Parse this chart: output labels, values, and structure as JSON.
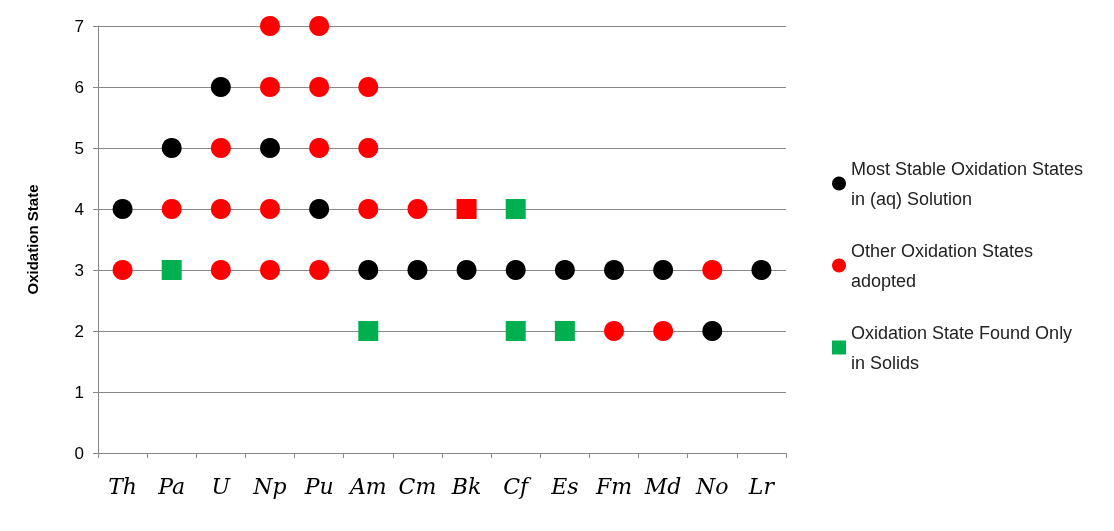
{
  "chart_data": {
    "type": "scatter",
    "ylabel": "Oxidation State",
    "categories": [
      "Th",
      "Pa",
      "U",
      "Np",
      "Pu",
      "Am",
      "Cm",
      "Bk",
      "Cf",
      "Es",
      "Fm",
      "Md",
      "No",
      "Lr"
    ],
    "ylim": [
      0,
      7
    ],
    "yticks": [
      0,
      1,
      2,
      3,
      4,
      5,
      6,
      7
    ],
    "grid": "y",
    "legend": "right",
    "series": [
      {
        "name": "Most Stable Oxidation States in (aq) Solution",
        "color": "#000000",
        "marker": "circle",
        "x": [
          "Th",
          "Pa",
          "U",
          "Np",
          "Pu",
          "Am",
          "Cm",
          "Bk",
          "Cf",
          "Es",
          "Fm",
          "Md",
          "No",
          "Lr"
        ],
        "values": [
          4,
          5,
          6,
          5,
          4,
          3,
          3,
          3,
          3,
          3,
          3,
          3,
          2,
          3
        ]
      },
      {
        "name": "Other Oxidation States adopted",
        "color": "#ff0000",
        "marker": "circle",
        "x": [
          "Th",
          "Pa",
          "U",
          "U",
          "U",
          "Np",
          "Np",
          "Np",
          "Np",
          "Pu",
          "Pu",
          "Pu",
          "Pu",
          "Am",
          "Am",
          "Am",
          "Cm",
          "Fm",
          "Md",
          "No"
        ],
        "values": [
          3,
          4,
          3,
          4,
          5,
          3,
          4,
          6,
          7,
          3,
          5,
          6,
          7,
          4,
          5,
          6,
          4,
          2,
          2,
          3
        ]
      },
      {
        "name": "Oxidation State Found Only in Solids",
        "color": "#00b050",
        "marker": "square",
        "x": [
          "Pa",
          "Am",
          "Cf",
          "Cf",
          "Es"
        ],
        "values": [
          3,
          2,
          4,
          2,
          2
        ]
      },
      {
        "color": "#ff0000",
        "marker": "square",
        "x": [
          "Bk"
        ],
        "values": [
          4
        ]
      }
    ]
  }
}
